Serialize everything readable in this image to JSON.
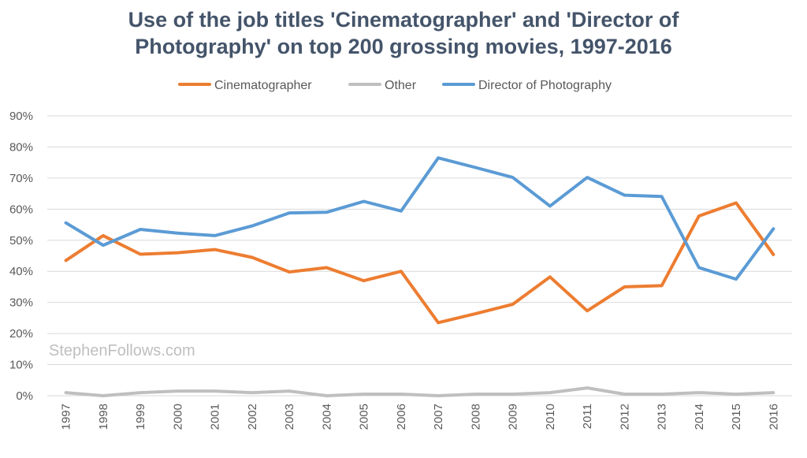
{
  "chart_data": {
    "type": "line",
    "title_lines": [
      "Use of the job titles 'Cinematographer' and 'Director of",
      "Photography' on top 200 grossing movies, 1997-2016"
    ],
    "xlabel": "",
    "ylabel": "",
    "categories": [
      "1997",
      "1998",
      "1999",
      "2000",
      "2001",
      "2002",
      "2003",
      "2004",
      "2005",
      "2006",
      "2007",
      "2008",
      "2009",
      "2010",
      "2011",
      "2012",
      "2013",
      "2014",
      "2015",
      "2016"
    ],
    "ylim": [
      0,
      90
    ],
    "y_ticks": [
      0,
      10,
      20,
      30,
      40,
      50,
      60,
      70,
      80,
      90
    ],
    "y_tick_labels": [
      "0%",
      "10%",
      "20%",
      "30%",
      "40%",
      "50%",
      "60%",
      "70%",
      "80%",
      "90%"
    ],
    "grid": true,
    "legend_position": "top-center",
    "series": [
      {
        "name": "Cinematographer",
        "color": "#ed7d31",
        "values": [
          43.5,
          51.5,
          45.5,
          46,
          47,
          44.5,
          39.8,
          41.2,
          37,
          40,
          23.5,
          26.4,
          29.4,
          38.2,
          27.3,
          35,
          35.4,
          57.8,
          62,
          45.4
        ]
      },
      {
        "name": "Other",
        "color": "#bfbfbf",
        "values": [
          1,
          0,
          1,
          1.5,
          1.5,
          1,
          1.5,
          0,
          0.5,
          0.5,
          0,
          0.5,
          0.5,
          1,
          2.5,
          0.5,
          0.5,
          1,
          0.5,
          1
        ]
      },
      {
        "name": "Director of Photography",
        "color": "#5b9bd5",
        "values": [
          55.6,
          48.4,
          53.5,
          52.3,
          51.5,
          54.6,
          58.8,
          59,
          62.5,
          59.4,
          76.5,
          73.4,
          70.2,
          61,
          70.2,
          64.5,
          64.1,
          41.2,
          37.5,
          53.7
        ]
      }
    ],
    "watermark": "StephenFollows.com"
  }
}
